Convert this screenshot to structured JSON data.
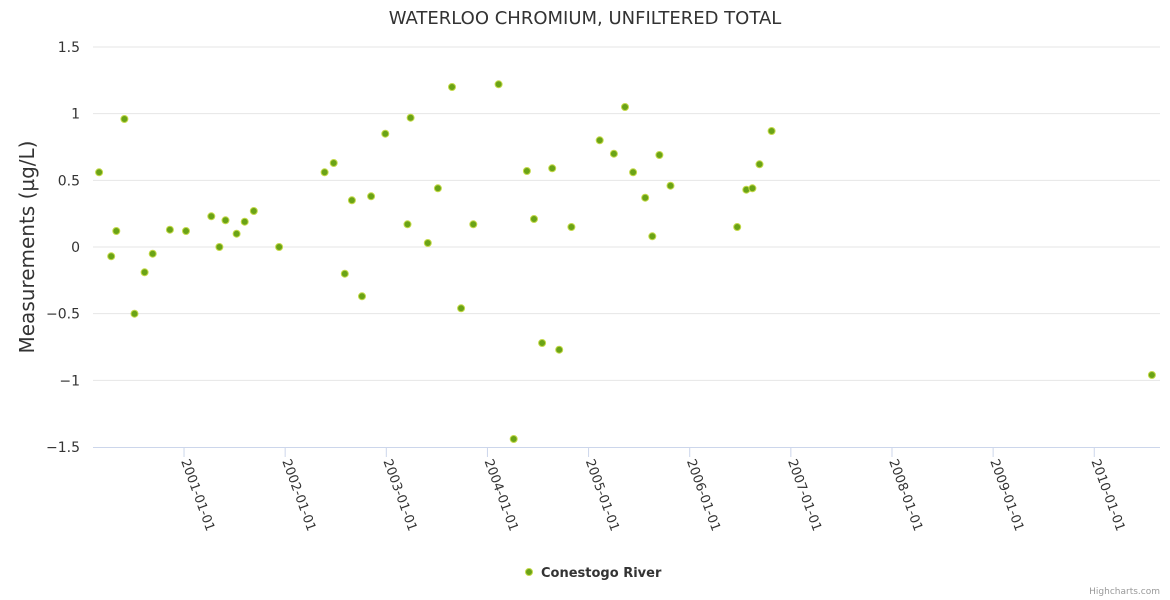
{
  "chart_data": {
    "type": "scatter",
    "title": "WATERLOO CHROMIUM, UNFILTERED TOTAL",
    "xlabel": "",
    "ylabel": "Measurements (µg/L)",
    "ylim": [
      -1.5,
      1.5
    ],
    "yticks": [
      1.5,
      1,
      0.5,
      0,
      -0.5,
      -1,
      -1.5
    ],
    "ytick_labels": [
      "1.5",
      "1",
      "0.5",
      "0",
      "−0.5",
      "−1",
      "−1.5"
    ],
    "xlim": [
      2000.1,
      2010.65
    ],
    "xticks": [
      2001,
      2002,
      2003,
      2004,
      2005,
      2006,
      2007,
      2008,
      2009,
      2010
    ],
    "xtick_labels": [
      "2001-01-01",
      "2002-01-01",
      "2003-01-01",
      "2004-01-01",
      "2005-01-01",
      "2006-01-01",
      "2007-01-01",
      "2008-01-01",
      "2009-01-01",
      "2010-01-01"
    ],
    "grid": true,
    "legend_position": "bottom-center",
    "series": [
      {
        "name": "Conestogo River",
        "color": "#6aa316",
        "points": [
          [
            2000.16,
            0.56
          ],
          [
            2000.28,
            -0.07
          ],
          [
            2000.33,
            0.12
          ],
          [
            2000.41,
            0.96
          ],
          [
            2000.51,
            -0.5
          ],
          [
            2000.61,
            -0.19
          ],
          [
            2000.69,
            -0.05
          ],
          [
            2000.86,
            0.13
          ],
          [
            2001.02,
            0.12
          ],
          [
            2001.27,
            0.23
          ],
          [
            2001.35,
            0.0
          ],
          [
            2001.41,
            0.2
          ],
          [
            2001.52,
            0.1
          ],
          [
            2001.6,
            0.19
          ],
          [
            2001.69,
            0.27
          ],
          [
            2001.94,
            0.0
          ],
          [
            2002.39,
            0.56
          ],
          [
            2002.48,
            0.63
          ],
          [
            2002.59,
            -0.2
          ],
          [
            2002.66,
            0.35
          ],
          [
            2002.76,
            -0.37
          ],
          [
            2002.85,
            0.38
          ],
          [
            2002.99,
            0.85
          ],
          [
            2003.21,
            0.17
          ],
          [
            2003.24,
            0.97
          ],
          [
            2003.41,
            0.03
          ],
          [
            2003.51,
            0.44
          ],
          [
            2003.65,
            1.2
          ],
          [
            2003.74,
            -0.46
          ],
          [
            2003.86,
            0.17
          ],
          [
            2004.11,
            1.22
          ],
          [
            2004.26,
            -1.44
          ],
          [
            2004.39,
            0.57
          ],
          [
            2004.46,
            0.21
          ],
          [
            2004.54,
            -0.72
          ],
          [
            2004.64,
            0.59
          ],
          [
            2004.71,
            -0.77
          ],
          [
            2004.83,
            0.15
          ],
          [
            2005.11,
            0.8
          ],
          [
            2005.25,
            0.7
          ],
          [
            2005.36,
            1.05
          ],
          [
            2005.44,
            0.56
          ],
          [
            2005.56,
            0.37
          ],
          [
            2005.63,
            0.08
          ],
          [
            2005.7,
            0.69
          ],
          [
            2005.81,
            0.46
          ],
          [
            2006.47,
            0.15
          ],
          [
            2006.56,
            0.43
          ],
          [
            2006.62,
            0.44
          ],
          [
            2006.69,
            0.62
          ],
          [
            2006.81,
            0.87
          ],
          [
            2010.57,
            -0.96
          ]
        ]
      }
    ]
  },
  "credits": "Highcharts.com"
}
